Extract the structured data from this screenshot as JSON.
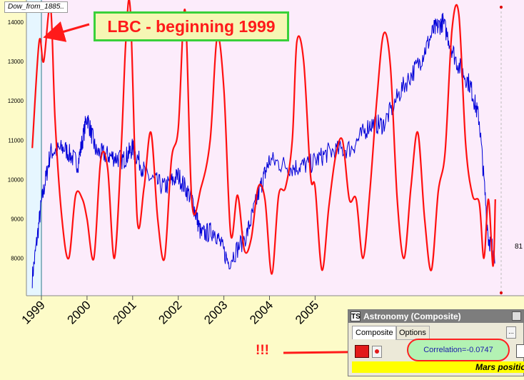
{
  "chart": {
    "series_tag": "Dow_from_1885..",
    "y_labels": [
      "14000",
      "13000",
      "12000",
      "11000",
      "10000",
      "9000",
      "8000"
    ],
    "x_labels": [
      "1999",
      "2000",
      "2001",
      "2002",
      "2003",
      "2004",
      "2005"
    ],
    "edge_value": "81",
    "colors": {
      "plot_bg": "#fcecfb",
      "blue_series": "#0000d8",
      "red_series": "#ff1010",
      "highlight": "#e6f6ff"
    }
  },
  "chart_data": {
    "type": "line",
    "ylim": [
      7300,
      14400
    ],
    "xlim": [
      1998.75,
      2009.0
    ],
    "series": [
      {
        "x": [
          1998.8,
          1999.0,
          1999.2,
          1999.5,
          1999.8,
          2000.0,
          2000.2,
          2000.5,
          2000.8,
          2001.0,
          2001.3,
          2001.7,
          2002.0,
          2002.3,
          2002.5,
          2002.8,
          2003.1,
          2003.5,
          2003.8,
          2004.0,
          2004.5,
          2004.9,
          2005.3,
          2005.8,
          2006.2,
          2006.5,
          2006.9,
          2007.3,
          2007.6,
          2007.8,
          2008.1,
          2008.4,
          2008.6,
          2008.8,
          2008.95
        ],
        "y": [
          7500,
          9400,
          10700,
          10800,
          10400,
          11600,
          10700,
          10600,
          10500,
          10800,
          10100,
          9800,
          10100,
          9500,
          8600,
          8700,
          7900,
          8600,
          9800,
          10500,
          10300,
          10400,
          10700,
          10800,
          11400,
          11400,
          12300,
          13000,
          13800,
          14000,
          13000,
          12400,
          11500,
          8500,
          8100
        ]
      },
      {
        "x": [
          1998.8,
          1998.95,
          1999.05,
          1999.2,
          1999.3,
          1999.45,
          1999.6,
          1999.75,
          1999.9,
          2000.0,
          2000.15,
          2000.3,
          2000.45,
          2000.6,
          2000.75,
          2000.85,
          2000.95,
          2001.1,
          2001.25,
          2001.4,
          2001.55,
          2001.7,
          2001.85,
          2002.0,
          2002.15,
          2002.3,
          2002.5,
          2002.7,
          2002.85,
          2003.0,
          2003.15,
          2003.3,
          2003.45,
          2003.6,
          2003.75,
          2003.9,
          2004.05,
          2004.2,
          2004.35,
          2004.5,
          2004.6,
          2004.75,
          2004.9,
          2005.0,
          2005.15,
          2005.3,
          2005.45,
          2005.6,
          2005.75,
          2005.9,
          2006.05,
          2006.2,
          2006.35,
          2006.5,
          2006.65,
          2006.8,
          2006.95,
          2007.1,
          2007.25,
          2007.4,
          2007.55,
          2007.7,
          2007.85,
          2008.0,
          2008.15,
          2008.3,
          2008.45,
          2008.6,
          2008.7,
          2008.8,
          2008.9,
          2008.95
        ],
        "y": [
          10800,
          13500,
          13000,
          14400,
          11500,
          9000,
          8000,
          9600,
          9500,
          9000,
          8000,
          10500,
          10300,
          8000,
          10800,
          13500,
          14300,
          9000,
          9800,
          11200,
          9000,
          8000,
          10500,
          11300,
          14300,
          9400,
          9800,
          11000,
          13600,
          12300,
          8600,
          9600,
          8200,
          8500,
          9800,
          9500,
          7600,
          9600,
          9800,
          11000,
          13500,
          13000,
          10100,
          9800,
          7700,
          9300,
          10600,
          11000,
          9500,
          9500,
          8000,
          9700,
          12000,
          13700,
          12900,
          9500,
          8000,
          9800,
          11200,
          9000,
          7700,
          9700,
          10700,
          13800,
          14200,
          10900,
          9600,
          9400,
          8000,
          9500,
          7800,
          9500
        ]
      }
    ]
  },
  "annotation": {
    "text": "LBC - beginning 1999"
  },
  "marker": {
    "text": "!!!"
  },
  "panel": {
    "title": "Astronomy (Composite)",
    "icon_text": "TS",
    "tabs": [
      "Composite",
      "Options"
    ],
    "dots_label": "...",
    "correlation": "Correlation=-0.0747",
    "footer": "Mars positio"
  }
}
